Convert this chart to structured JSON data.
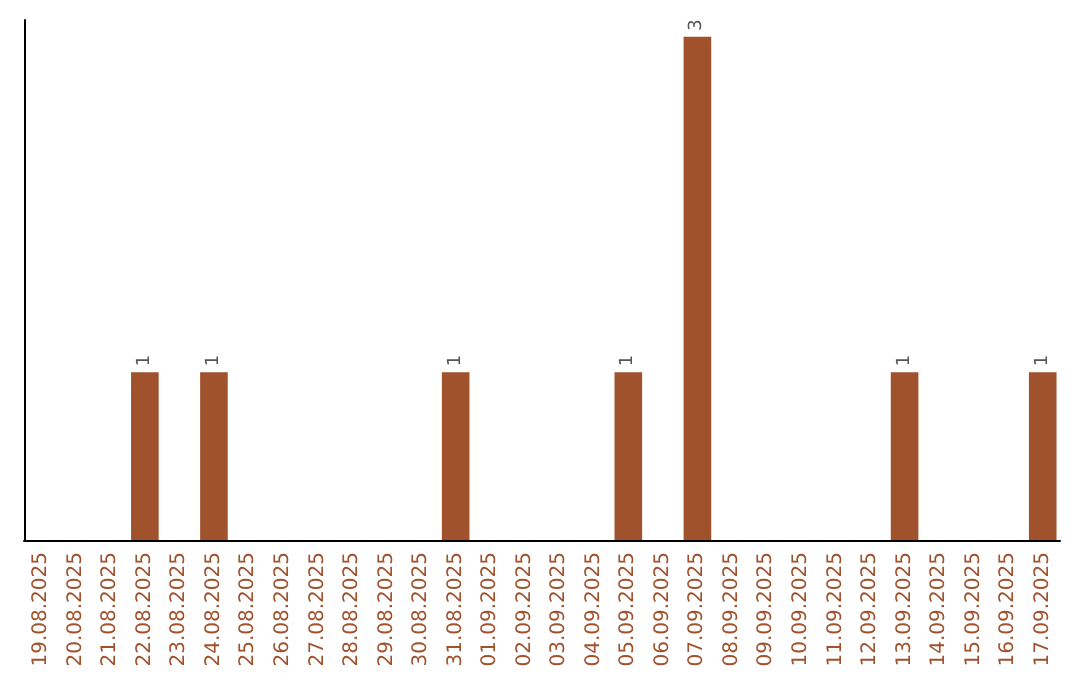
{
  "chart_data": {
    "type": "bar",
    "categories": [
      "19.08.2025",
      "20.08.2025",
      "21.08.2025",
      "22.08.2025",
      "23.08.2025",
      "24.08.2025",
      "25.08.2025",
      "26.08.2025",
      "27.08.2025",
      "28.08.2025",
      "29.08.2025",
      "30.08.2025",
      "31.08.2025",
      "01.09.2025",
      "02.09.2025",
      "03.09.2025",
      "04.09.2025",
      "05.09.2025",
      "06.09.2025",
      "07.09.2025",
      "08.09.2025",
      "09.09.2025",
      "10.09.2025",
      "11.09.2025",
      "12.09.2025",
      "13.09.2025",
      "14.09.2025",
      "15.09.2025",
      "16.09.2025",
      "17.09.2025"
    ],
    "values": [
      0,
      0,
      0,
      1,
      0,
      1,
      0,
      0,
      0,
      0,
      0,
      0,
      1,
      0,
      0,
      0,
      0,
      1,
      0,
      3,
      0,
      0,
      0,
      0,
      0,
      1,
      0,
      0,
      0,
      1
    ],
    "value_labels": [
      null,
      null,
      null,
      "1",
      null,
      "1",
      null,
      null,
      null,
      null,
      null,
      null,
      "1",
      null,
      null,
      null,
      null,
      "1",
      null,
      "3",
      null,
      null,
      null,
      null,
      null,
      "1",
      null,
      null,
      null,
      "1"
    ],
    "color": "#a0522d",
    "ylim": [
      0,
      3.1
    ],
    "tick_labels": "x",
    "grid": false
  }
}
